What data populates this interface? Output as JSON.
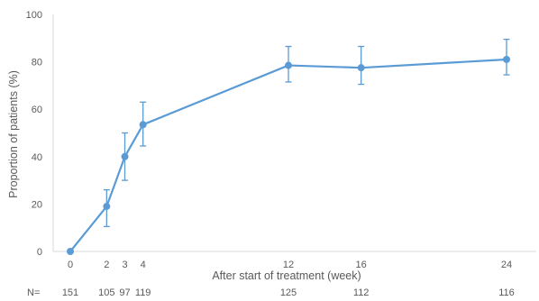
{
  "chart_data": {
    "type": "line",
    "title": "",
    "xlabel": "After start of treatment (week)",
    "ylabel": "Proportion of patients (%)",
    "ylim": [
      0,
      100
    ],
    "yticks": [
      0,
      20,
      40,
      60,
      80,
      100
    ],
    "xlim": [
      0,
      24
    ],
    "xticks": [
      0,
      2,
      3,
      4,
      12,
      16,
      24
    ],
    "grid": false,
    "series": [
      {
        "x": [
          0,
          2,
          3,
          4,
          12,
          16,
          24
        ],
        "y": [
          0,
          19,
          40,
          53.5,
          78.5,
          77.5,
          81
        ],
        "err_lower": [
          0,
          10.5,
          30,
          44.5,
          71.5,
          70.5,
          74.5
        ],
        "err_upper": [
          0,
          26,
          50,
          63,
          86.5,
          86.5,
          89.5
        ],
        "color": "#5b9bd5"
      }
    ],
    "n_label": "N=",
    "n_values": [
      {
        "week": 0,
        "n": "151"
      },
      {
        "week": 2,
        "n": "105"
      },
      {
        "week": 3,
        "n": "97"
      },
      {
        "week": 4,
        "n": "119"
      },
      {
        "week": 12,
        "n": "125"
      },
      {
        "week": 16,
        "n": "112"
      },
      {
        "week": 24,
        "n": "116"
      }
    ]
  }
}
